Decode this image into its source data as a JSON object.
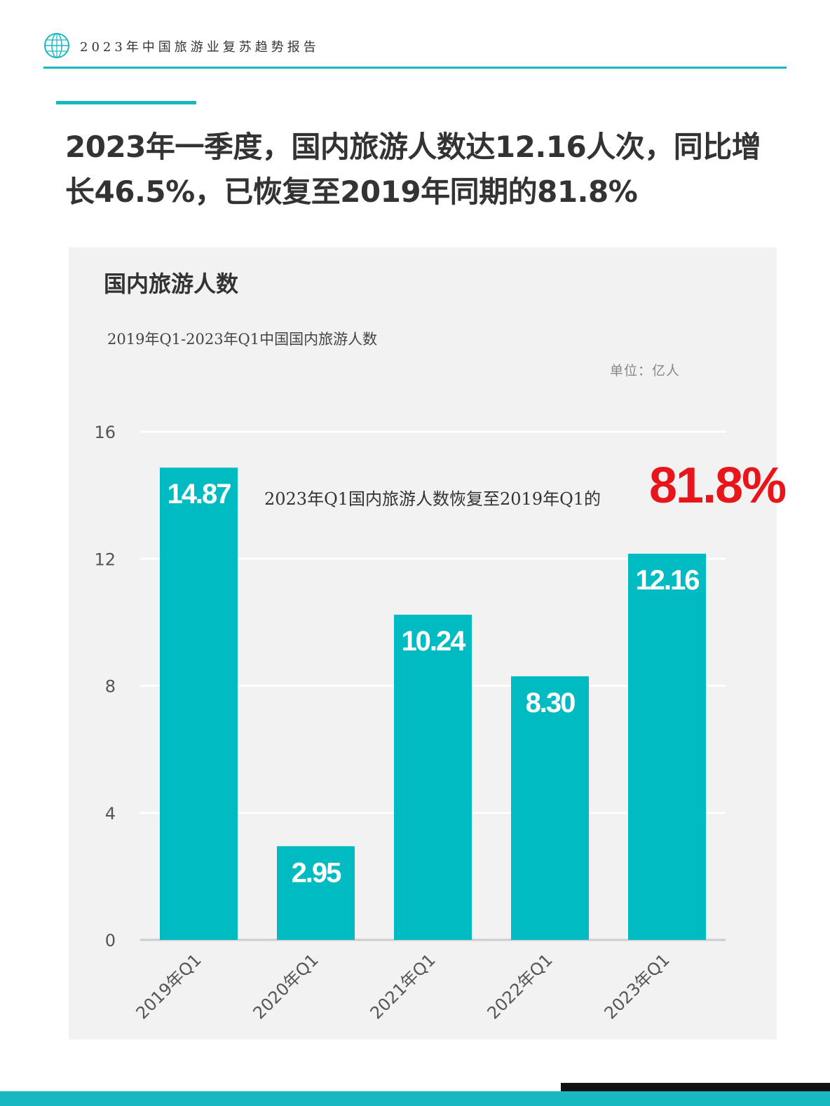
{
  "header": {
    "title": "2023年中国旅游业复苏趋势报告",
    "logo_icon": "globe-icon"
  },
  "headline": {
    "line1": "2023年一季度，国内旅游人数达12.16人次，同比增",
    "line2": "长46.5%，已恢复至2019年同期的81.8%"
  },
  "panel": {
    "title": "国内旅游人数",
    "unit": "单位：亿人",
    "annotation_text": "2023年Q1国内旅游人数恢复至2019年Q1的",
    "annotation_value": "81.8%",
    "annotation_color": "#e8151b"
  },
  "colors": {
    "accent": "#17b8c0",
    "bar": "#00bcc2",
    "panel_bg": "#f2f2f2"
  },
  "chart_data": {
    "type": "bar",
    "title": "2019年Q1-2023年Q1中国国内旅游人数",
    "categories": [
      "2019年Q1",
      "2020年Q1",
      "2021年Q1",
      "2022年Q1",
      "2023年Q1"
    ],
    "values": [
      14.87,
      2.95,
      10.24,
      8.3,
      12.16
    ],
    "value_labels": [
      "14.87",
      "2.95",
      "10.24",
      "8.30",
      "12.16"
    ],
    "ylim": [
      0,
      16
    ],
    "yticks": [
      0,
      4,
      8,
      12,
      16
    ],
    "grid": true,
    "xlabel": "",
    "ylabel": ""
  }
}
